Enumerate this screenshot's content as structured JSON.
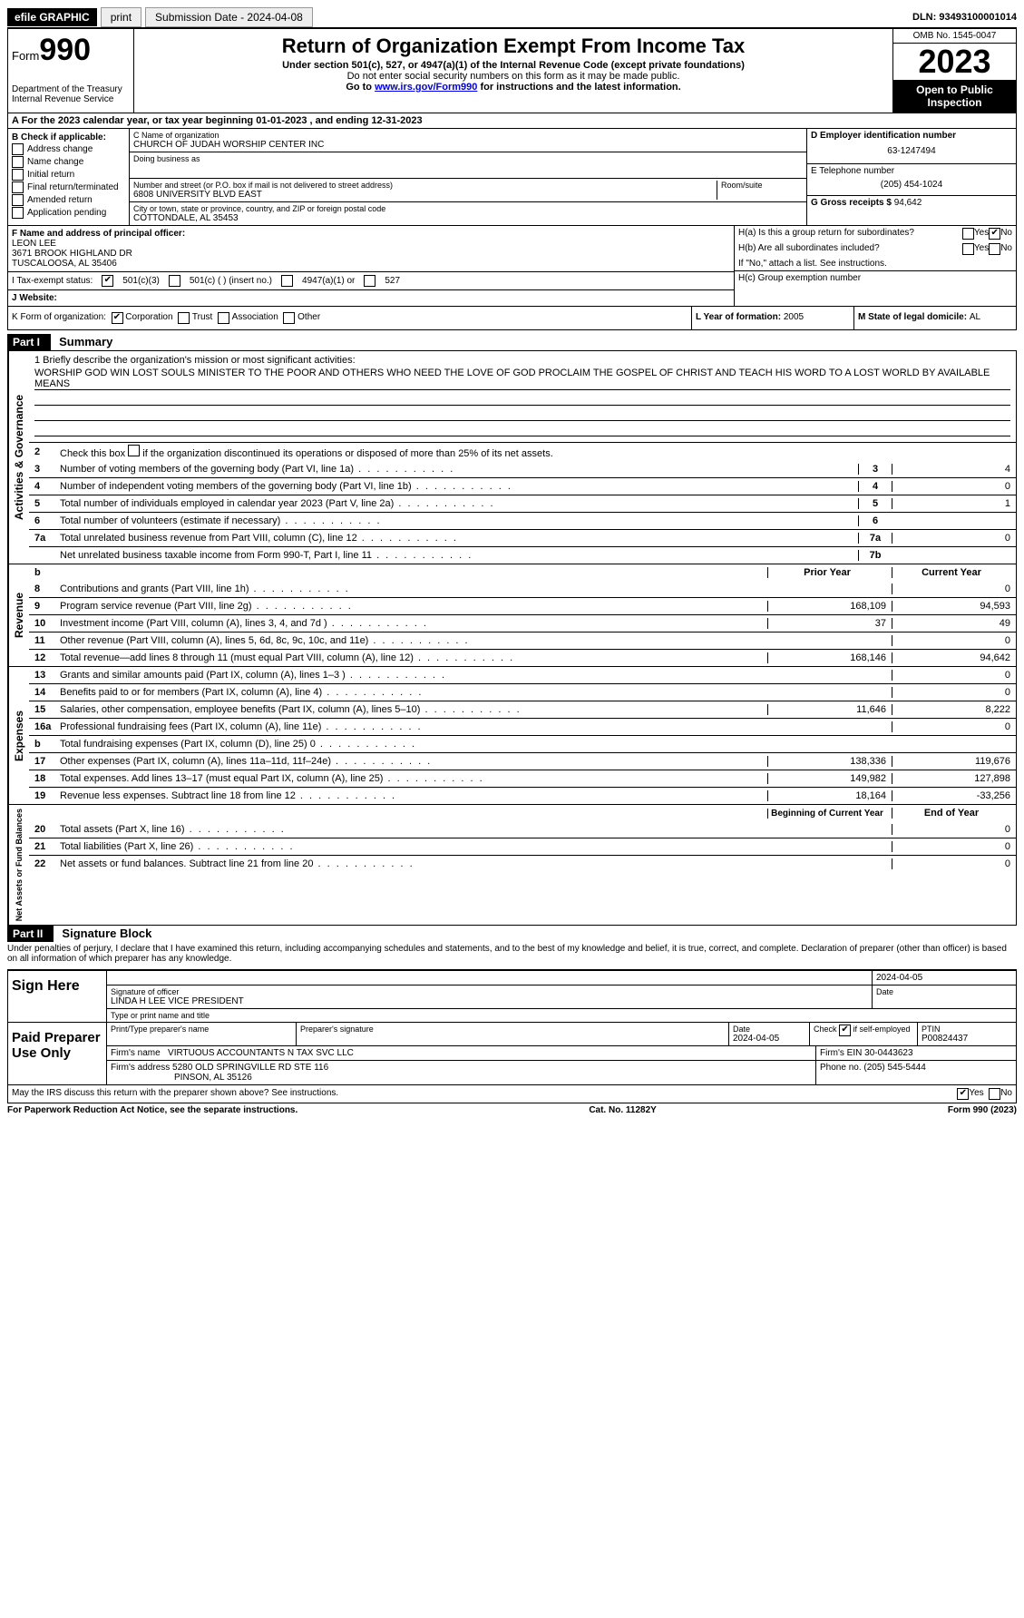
{
  "topbar": {
    "efile": "efile GRAPHIC",
    "print": "print",
    "submission_label": "Submission Date - 2024-04-08",
    "dln_label": "DLN: 93493100001014"
  },
  "header": {
    "form_word": "Form",
    "form_num": "990",
    "title": "Return of Organization Exempt From Income Tax",
    "subtitle": "Under section 501(c), 527, or 4947(a)(1) of the Internal Revenue Code (except private foundations)",
    "ssn_note": "Do not enter social security numbers on this form as it may be made public.",
    "goto_pre": "Go to ",
    "goto_link": "www.irs.gov/Form990",
    "goto_post": " for instructions and the latest information.",
    "dept": "Department of the Treasury",
    "irs": "Internal Revenue Service",
    "omb": "OMB No. 1545-0047",
    "year": "2023",
    "inspect": "Open to Public Inspection"
  },
  "row_a": "A For the 2023 calendar year, or tax year beginning 01-01-2023   , and ending 12-31-2023",
  "section_b": {
    "label": "B Check if applicable:",
    "items": [
      "Address change",
      "Name change",
      "Initial return",
      "Final return/terminated",
      "Amended return",
      "Application pending"
    ]
  },
  "section_c": {
    "name_label": "C Name of organization",
    "name": "CHURCH OF JUDAH WORSHIP CENTER INC",
    "dba_label": "Doing business as",
    "street_label": "Number and street (or P.O. box if mail is not delivered to street address)",
    "room_label": "Room/suite",
    "street": "6808 UNIVERSITY BLVD EAST",
    "city_label": "City or town, state or province, country, and ZIP or foreign postal code",
    "city": "COTTONDALE, AL  35453"
  },
  "section_d": {
    "ein_label": "D Employer identification number",
    "ein": "63-1247494",
    "phone_label": "E Telephone number",
    "phone": "(205) 454-1024",
    "gross_label": "G Gross receipts $ ",
    "gross": "94,642"
  },
  "section_f": {
    "label": "F  Name and address of principal officer:",
    "name": "LEON LEE",
    "addr1": "3671 BROOK HIGHLAND DR",
    "addr2": "TUSCALOOSA, AL  35406"
  },
  "section_h": {
    "ha": "H(a)  Is this a group return for subordinates?",
    "hb": "H(b)  Are all subordinates included?",
    "hb_note": "If \"No,\" attach a list. See instructions.",
    "hc": "H(c)  Group exemption number ",
    "yes": "Yes",
    "no": "No"
  },
  "section_i": {
    "label": "I    Tax-exempt status:",
    "c3": "501(c)(3)",
    "c": "501(c) (  ) (insert no.)",
    "a1": "4947(a)(1) or",
    "s527": "527"
  },
  "section_j": {
    "label": "J    Website: "
  },
  "section_k": {
    "label": "K Form of organization:",
    "corp": "Corporation",
    "trust": "Trust",
    "assoc": "Association",
    "other": "Other"
  },
  "section_l": {
    "label": "L Year of formation: ",
    "val": "2005"
  },
  "section_m": {
    "label": "M State of legal domicile: ",
    "val": "AL"
  },
  "part1": {
    "header": "Part I",
    "title": "Summary"
  },
  "mission": {
    "label": "1   Briefly describe the organization's mission or most significant activities:",
    "text": "WORSHIP GOD WIN LOST SOULS MINISTER TO THE POOR AND OTHERS WHO NEED THE LOVE OF GOD PROCLAIM THE GOSPEL OF CHRIST AND TEACH HIS WORD TO A LOST WORLD BY AVAILABLE MEANS"
  },
  "line2": "Check this box      if the organization discontinued its operations or disposed of more than 25% of its net assets.",
  "vtabs": {
    "gov": "Activities & Governance",
    "rev": "Revenue",
    "exp": "Expenses",
    "net": "Net Assets or Fund Balances"
  },
  "lines_gov": [
    {
      "n": "3",
      "d": "Number of voting members of the governing body (Part VI, line 1a)",
      "box": "3",
      "v": "4"
    },
    {
      "n": "4",
      "d": "Number of independent voting members of the governing body (Part VI, line 1b)",
      "box": "4",
      "v": "0"
    },
    {
      "n": "5",
      "d": "Total number of individuals employed in calendar year 2023 (Part V, line 2a)",
      "box": "5",
      "v": "1"
    },
    {
      "n": "6",
      "d": "Total number of volunteers (estimate if necessary)",
      "box": "6",
      "v": ""
    },
    {
      "n": "7a",
      "d": "Total unrelated business revenue from Part VIII, column (C), line 12",
      "box": "7a",
      "v": "0"
    },
    {
      "n": "",
      "d": "Net unrelated business taxable income from Form 990-T, Part I, line 11",
      "box": "7b",
      "v": ""
    }
  ],
  "col_headers": {
    "prior": "Prior Year",
    "current": "Current Year"
  },
  "lines_rev": [
    {
      "n": "8",
      "d": "Contributions and grants (Part VIII, line 1h)",
      "p": "",
      "c": "0"
    },
    {
      "n": "9",
      "d": "Program service revenue (Part VIII, line 2g)",
      "p": "168,109",
      "c": "94,593"
    },
    {
      "n": "10",
      "d": "Investment income (Part VIII, column (A), lines 3, 4, and 7d )",
      "p": "37",
      "c": "49"
    },
    {
      "n": "11",
      "d": "Other revenue (Part VIII, column (A), lines 5, 6d, 8c, 9c, 10c, and 11e)",
      "p": "",
      "c": "0"
    },
    {
      "n": "12",
      "d": "Total revenue—add lines 8 through 11 (must equal Part VIII, column (A), line 12)",
      "p": "168,146",
      "c": "94,642"
    }
  ],
  "lines_exp": [
    {
      "n": "13",
      "d": "Grants and similar amounts paid (Part IX, column (A), lines 1–3 )",
      "p": "",
      "c": "0"
    },
    {
      "n": "14",
      "d": "Benefits paid to or for members (Part IX, column (A), line 4)",
      "p": "",
      "c": "0"
    },
    {
      "n": "15",
      "d": "Salaries, other compensation, employee benefits (Part IX, column (A), lines 5–10)",
      "p": "11,646",
      "c": "8,222"
    },
    {
      "n": "16a",
      "d": "Professional fundraising fees (Part IX, column (A), line 11e)",
      "p": "",
      "c": "0"
    },
    {
      "n": "b",
      "d": "Total fundraising expenses (Part IX, column (D), line 25) 0",
      "p": "grey",
      "c": "grey"
    },
    {
      "n": "17",
      "d": "Other expenses (Part IX, column (A), lines 11a–11d, 11f–24e)",
      "p": "138,336",
      "c": "119,676"
    },
    {
      "n": "18",
      "d": "Total expenses. Add lines 13–17 (must equal Part IX, column (A), line 25)",
      "p": "149,982",
      "c": "127,898"
    },
    {
      "n": "19",
      "d": "Revenue less expenses. Subtract line 18 from line 12",
      "p": "18,164",
      "c": "-33,256"
    }
  ],
  "col_headers2": {
    "begin": "Beginning of Current Year",
    "end": "End of Year"
  },
  "lines_net": [
    {
      "n": "20",
      "d": "Total assets (Part X, line 16)",
      "p": "",
      "c": "0"
    },
    {
      "n": "21",
      "d": "Total liabilities (Part X, line 26)",
      "p": "",
      "c": "0"
    },
    {
      "n": "22",
      "d": "Net assets or fund balances. Subtract line 21 from line 20",
      "p": "",
      "c": "0"
    }
  ],
  "part2": {
    "header": "Part II",
    "title": "Signature Block"
  },
  "perjury": "Under penalties of perjury, I declare that I have examined this return, including accompanying schedules and statements, and to the best of my knowledge and belief, it is true, correct, and complete. Declaration of preparer (other than officer) is based on all information of which preparer has any knowledge.",
  "sign": {
    "label": "Sign Here",
    "sig_label": "Signature of officer",
    "date_label": "Date",
    "date": "2024-04-05",
    "name_label": "Type or print name and title",
    "name": "LINDA H LEE VICE PRESIDENT"
  },
  "preparer": {
    "label": "Paid Preparer Use Only",
    "h1": "Print/Type preparer's name",
    "h2": "Preparer's signature",
    "h3": "Date",
    "h3v": "2024-04-05",
    "h4": "Check       if self-employed",
    "h5": "PTIN",
    "h5v": "P00824437",
    "firm_name_l": "Firm's name   ",
    "firm_name": "VIRTUOUS ACCOUNTANTS N TAX SVC LLC",
    "firm_ein_l": "Firm's EIN  ",
    "firm_ein": "30-0443623",
    "firm_addr_l": "Firm's address ",
    "firm_addr": "5280 OLD SPRINGVILLE RD STE 116",
    "firm_addr2": "PINSON, AL  35126",
    "phone_l": "Phone no. ",
    "phone": "(205) 545-5444"
  },
  "discuss": "May the IRS discuss this return with the preparer shown above? See instructions.",
  "footer": {
    "left": "For Paperwork Reduction Act Notice, see the separate instructions.",
    "mid": "Cat. No. 11282Y",
    "right": "Form 990 (2023)"
  }
}
